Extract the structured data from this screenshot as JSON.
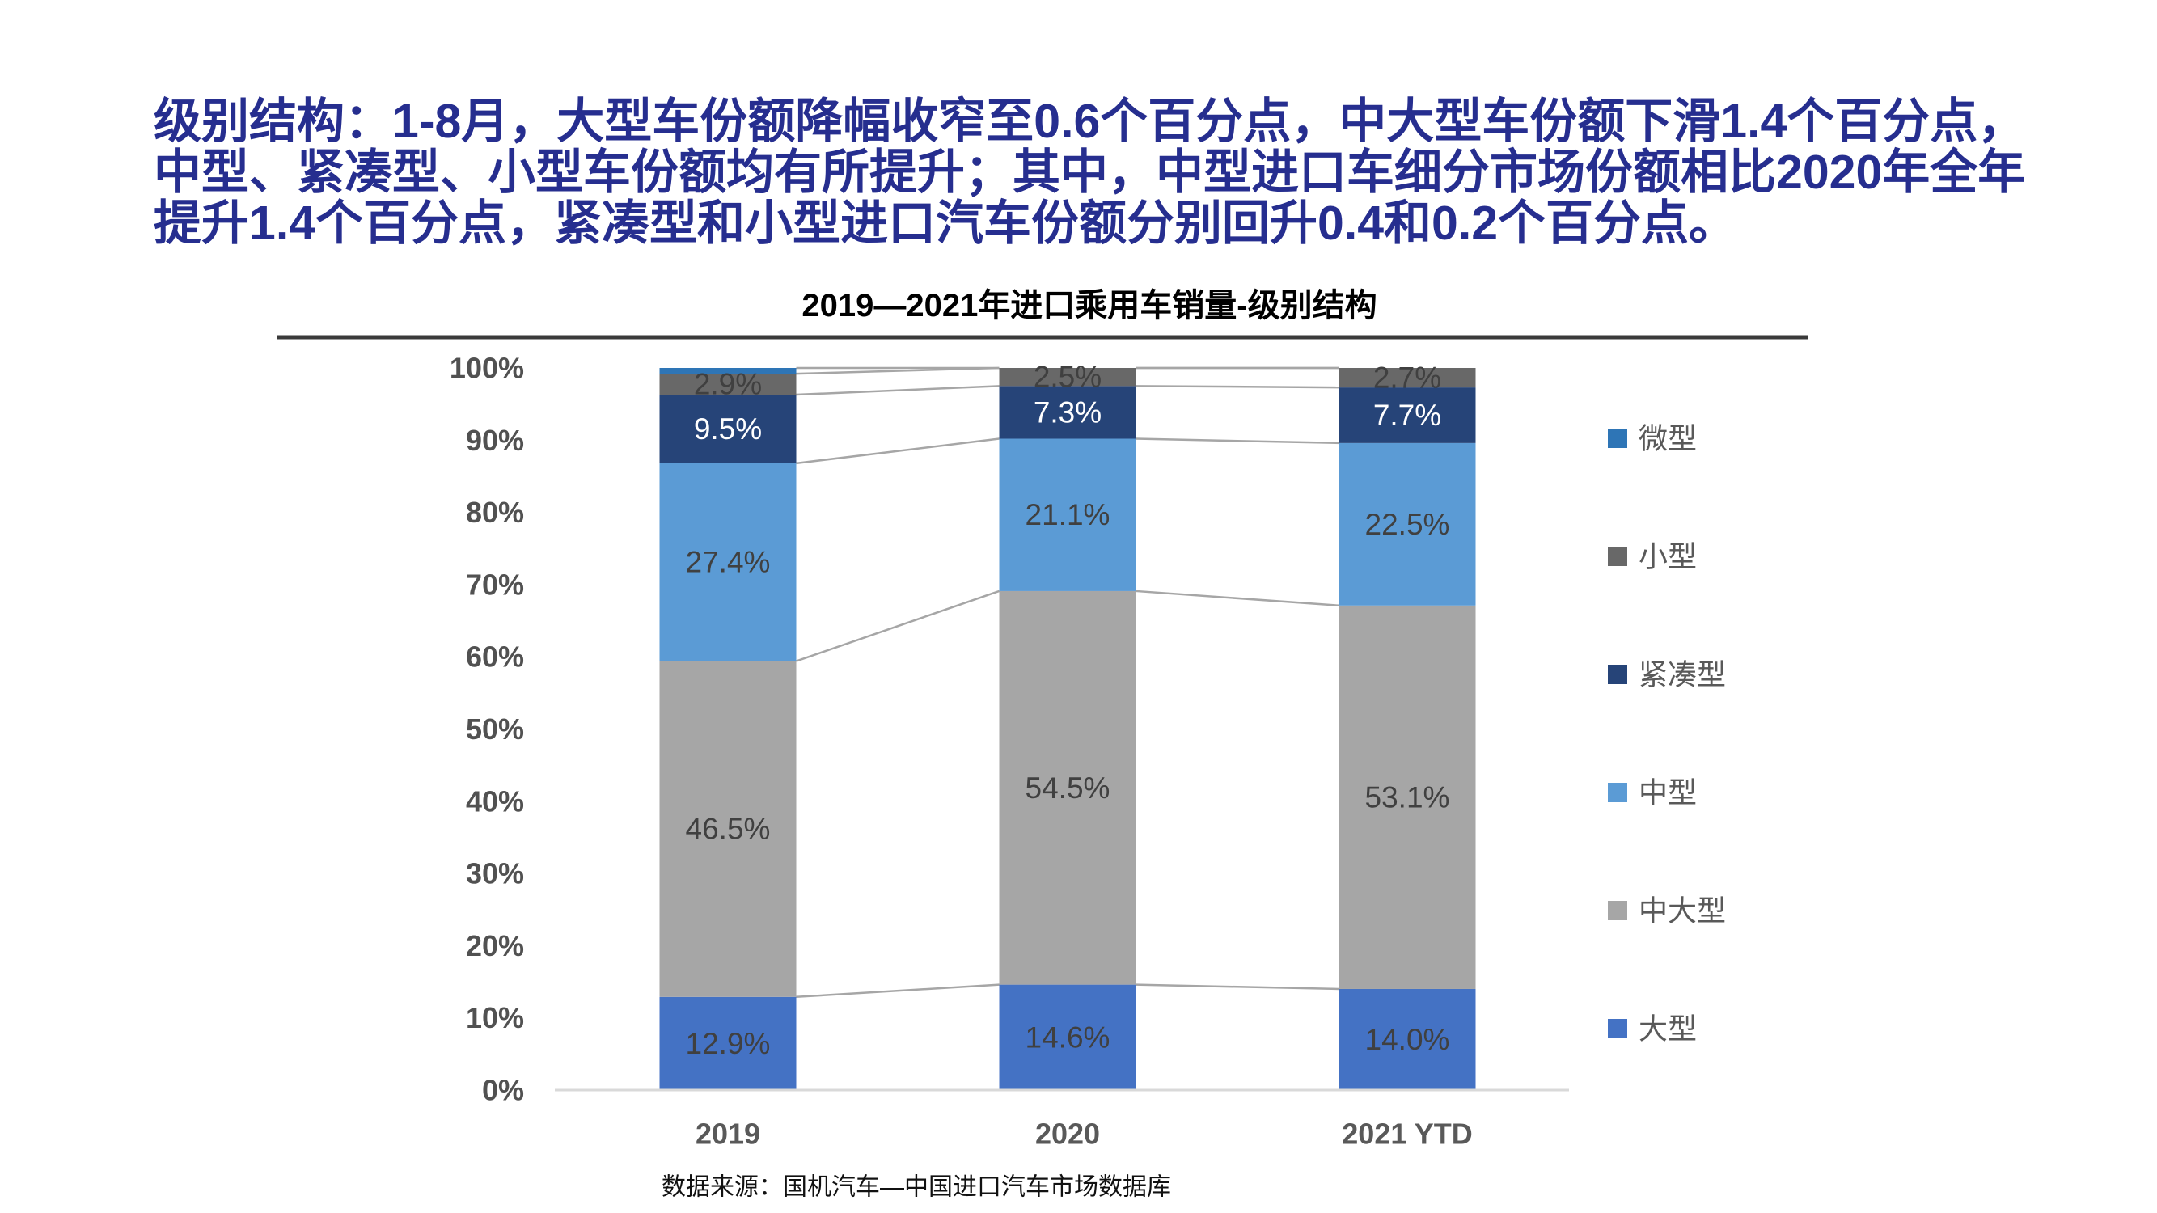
{
  "headline": {
    "lines": [
      "级别结构：1-8月，大型车份额降幅收窄至0.6个百分点，中大型车份额下滑1.4个百分点，",
      "中型、紧凑型、小型车份额均有所提升；其中，中型进口车细分市场份额相比2020年全年",
      "提升1.4个百分点，紧凑型和小型进口汽车份额分别回升0.4和0.2个百分点。"
    ],
    "color": "#262e8f"
  },
  "chart": {
    "title": "2019—2021年进口乘用车销量-级别结构",
    "source": "数据来源：国机汽车—中国进口汽车市场数据库",
    "chart_data": {
      "type": "stacked-bar-100",
      "categories": [
        "2019",
        "2020",
        "2021 YTD"
      ],
      "series": [
        {
          "name": "大型",
          "color": "#4472C4",
          "label_color": "#404040",
          "values": [
            12.9,
            14.6,
            14.0
          ],
          "show_labels": true
        },
        {
          "name": "中大型",
          "color": "#A6A6A6",
          "label_color": "#404040",
          "values": [
            46.5,
            54.5,
            53.1
          ],
          "show_labels": true
        },
        {
          "name": "中型",
          "color": "#5B9BD5",
          "label_color": "#404040",
          "values": [
            27.4,
            21.1,
            22.5
          ],
          "show_labels": true
        },
        {
          "name": "紧凑型",
          "color": "#264478",
          "label_color": "#FFFFFF",
          "values": [
            9.5,
            7.3,
            7.7
          ],
          "show_labels": true
        },
        {
          "name": "小型",
          "color": "#686868",
          "label_color": "#404040",
          "values": [
            2.9,
            2.5,
            2.7
          ],
          "show_labels": true
        },
        {
          "name": "微型",
          "color": "#2E75B6",
          "label_color": null,
          "values": [
            0.8,
            0.0,
            0.0
          ],
          "show_labels": false
        }
      ],
      "y_axis": {
        "tick_labels": [
          "100%",
          "90%",
          "80%",
          "70%",
          "60%",
          "50%",
          "40%",
          "30%",
          "20%",
          "10%",
          "0%"
        ],
        "min": 0,
        "max": 100,
        "grid": false
      },
      "legend_position": "right",
      "connector_line_color": "#A6A6A6",
      "axis_line_color": "#D9D9D9"
    }
  }
}
